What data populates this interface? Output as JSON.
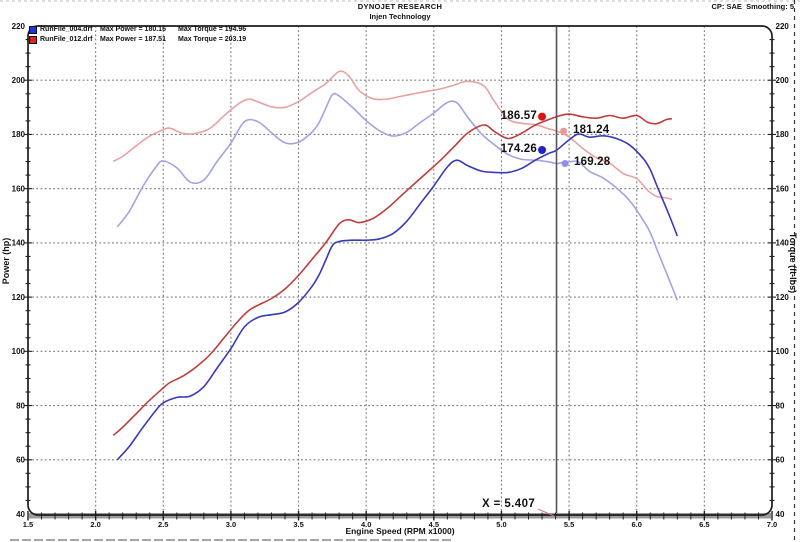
{
  "header": {
    "title": "DYNOJET RESEARCH",
    "subtitle": "Injen Technology",
    "right_info": "CP: SAE  Smoothing: 5"
  },
  "legend": {
    "rows": [
      {
        "swatch_color": "#2233dd",
        "file": "RunFile_004.drf",
        "max_power": "Max Power = 180.16",
        "max_torque": "Max Torque = 194.96"
      },
      {
        "swatch_color": "#dd2222",
        "file": "RunFile_012.drf",
        "max_power": "Max Power = 187.51",
        "max_torque": "Max Torque = 203.19"
      }
    ]
  },
  "chart_data": {
    "type": "line",
    "x_axis": {
      "label": "Engine Speed (RPM x1000)",
      "min": 1.5,
      "max": 7.0,
      "tick_step": 0.5,
      "minor_tick_step": 0.1
    },
    "y_left": {
      "label": "Power (hp)",
      "min": 40,
      "max": 220,
      "tick_step": 20,
      "minor_tick_step": 5
    },
    "y_right": {
      "label": "Torque (ft-lbs)",
      "min": 40,
      "max": 220,
      "tick_step": 20,
      "minor_tick_step": 5
    },
    "grid": "dashed",
    "cursor": {
      "x": 5.407,
      "label": "X = 5.407"
    },
    "markers": [
      {
        "label": "186.57",
        "value": 186.57,
        "x": 5.3,
        "color": "#dd1111",
        "radius": 4,
        "label_side": "left"
      },
      {
        "label": "181.24",
        "value": 181.24,
        "x": 5.46,
        "color": "#e89898",
        "radius": 3.5,
        "label_side": "right"
      },
      {
        "label": "174.26",
        "value": 174.26,
        "x": 5.3,
        "color": "#2222cc",
        "radius": 4,
        "label_side": "left"
      },
      {
        "label": "169.28",
        "value": 169.28,
        "x": 5.47,
        "color": "#9090e8",
        "radius": 3.5,
        "label_side": "right"
      }
    ],
    "series": [
      {
        "name": "RunFile_004.drf Torque (ft-lbs)",
        "color": "#a3a3e3",
        "axis": "right",
        "points": [
          [
            2.16,
            145.9
          ],
          [
            2.25,
            151.7
          ],
          [
            2.35,
            160.9
          ],
          [
            2.45,
            168.3
          ],
          [
            2.5,
            170.2
          ],
          [
            2.6,
            167.7
          ],
          [
            2.7,
            162.4
          ],
          [
            2.8,
            163.2
          ],
          [
            2.9,
            170.2
          ],
          [
            3.0,
            176.8
          ],
          [
            3.1,
            184.7
          ],
          [
            3.2,
            184.7
          ],
          [
            3.3,
            180.6
          ],
          [
            3.4,
            176.9
          ],
          [
            3.5,
            177.1
          ],
          [
            3.6,
            180.9
          ],
          [
            3.65,
            184.2
          ],
          [
            3.7,
            189.5
          ],
          [
            3.75,
            194.7
          ],
          [
            3.8,
            194.2
          ],
          [
            3.9,
            189.9
          ],
          [
            4.0,
            185.1
          ],
          [
            4.1,
            181.3
          ],
          [
            4.2,
            179.4
          ],
          [
            4.3,
            180.8
          ],
          [
            4.4,
            184.4
          ],
          [
            4.5,
            187.9
          ],
          [
            4.6,
            191.8
          ],
          [
            4.67,
            191.7
          ],
          [
            4.75,
            186.4
          ],
          [
            4.85,
            180.3
          ],
          [
            4.95,
            176.1
          ],
          [
            5.05,
            172.6
          ],
          [
            5.15,
            170.8
          ],
          [
            5.25,
            170.5
          ],
          [
            5.35,
            169.9
          ],
          [
            5.41,
            169.3
          ],
          [
            5.5,
            169.9
          ],
          [
            5.57,
            169.9
          ],
          [
            5.65,
            166.4
          ],
          [
            5.75,
            164.0
          ],
          [
            5.85,
            160.3
          ],
          [
            5.95,
            155.4
          ],
          [
            6.05,
            148.2
          ],
          [
            6.1,
            143.8
          ],
          [
            6.15,
            137.5
          ],
          [
            6.2,
            131.3
          ],
          [
            6.25,
            125.2
          ],
          [
            6.3,
            118.8
          ]
        ]
      },
      {
        "name": "RunFile_012.drf Torque (ft-lbs)",
        "color": "#e8a2a2",
        "axis": "right",
        "points": [
          [
            2.13,
            170.1
          ],
          [
            2.2,
            171.9
          ],
          [
            2.3,
            175.8
          ],
          [
            2.4,
            179.4
          ],
          [
            2.5,
            181.7
          ],
          [
            2.55,
            182.3
          ],
          [
            2.65,
            180.3
          ],
          [
            2.75,
            180.5
          ],
          [
            2.85,
            182.4
          ],
          [
            2.95,
            186.9
          ],
          [
            3.05,
            191.1
          ],
          [
            3.13,
            193.0
          ],
          [
            3.2,
            192.0
          ],
          [
            3.3,
            190.2
          ],
          [
            3.4,
            190.0
          ],
          [
            3.5,
            192.1
          ],
          [
            3.6,
            195.5
          ],
          [
            3.7,
            198.7
          ],
          [
            3.8,
            203.2
          ],
          [
            3.87,
            201.6
          ],
          [
            3.95,
            196.1
          ],
          [
            4.05,
            193.2
          ],
          [
            4.15,
            193.0
          ],
          [
            4.25,
            194.0
          ],
          [
            4.35,
            195.0
          ],
          [
            4.45,
            195.9
          ],
          [
            4.55,
            196.8
          ],
          [
            4.65,
            198.2
          ],
          [
            4.75,
            199.6
          ],
          [
            4.87,
            197.9
          ],
          [
            4.95,
            192.0
          ],
          [
            5.05,
            185.6
          ],
          [
            5.15,
            184.1
          ],
          [
            5.25,
            183.6
          ],
          [
            5.35,
            182.1
          ],
          [
            5.41,
            181.2
          ],
          [
            5.5,
            179.1
          ],
          [
            5.6,
            174.9
          ],
          [
            5.7,
            171.4
          ],
          [
            5.8,
            169.4
          ],
          [
            5.9,
            165.6
          ],
          [
            6.0,
            163.7
          ],
          [
            6.08,
            159.4
          ],
          [
            6.15,
            157.1
          ],
          [
            6.22,
            156.6
          ],
          [
            6.26,
            156.0
          ]
        ]
      },
      {
        "name": "RunFile_004.drf Power (hp)",
        "color": "#3939bd",
        "axis": "left",
        "points": [
          [
            2.16,
            60
          ],
          [
            2.25,
            65
          ],
          [
            2.35,
            72
          ],
          [
            2.45,
            78.5
          ],
          [
            2.5,
            81
          ],
          [
            2.6,
            83
          ],
          [
            2.7,
            83.5
          ],
          [
            2.8,
            87
          ],
          [
            2.9,
            94
          ],
          [
            3.0,
            101
          ],
          [
            3.1,
            109
          ],
          [
            3.2,
            112.5
          ],
          [
            3.3,
            113.5
          ],
          [
            3.4,
            114.5
          ],
          [
            3.5,
            118
          ],
          [
            3.6,
            124
          ],
          [
            3.65,
            128
          ],
          [
            3.7,
            133.5
          ],
          [
            3.75,
            139
          ],
          [
            3.8,
            140.5
          ],
          [
            3.9,
            141
          ],
          [
            4.0,
            141
          ],
          [
            4.1,
            141.5
          ],
          [
            4.2,
            143.5
          ],
          [
            4.3,
            148
          ],
          [
            4.4,
            154.5
          ],
          [
            4.5,
            161
          ],
          [
            4.6,
            168
          ],
          [
            4.67,
            170.5
          ],
          [
            4.75,
            168.5
          ],
          [
            4.85,
            166.5
          ],
          [
            4.95,
            166
          ],
          [
            5.05,
            166
          ],
          [
            5.15,
            167.5
          ],
          [
            5.25,
            170.5
          ],
          [
            5.35,
            173
          ],
          [
            5.41,
            174.3
          ],
          [
            5.5,
            178
          ],
          [
            5.57,
            180.2
          ],
          [
            5.65,
            179
          ],
          [
            5.75,
            179.5
          ],
          [
            5.85,
            178.5
          ],
          [
            5.95,
            176
          ],
          [
            6.05,
            171
          ],
          [
            6.1,
            167
          ],
          [
            6.15,
            161
          ],
          [
            6.2,
            155
          ],
          [
            6.25,
            149
          ],
          [
            6.3,
            142.5
          ]
        ]
      },
      {
        "name": "RunFile_012.drf Power (hp)",
        "color": "#c23b3b",
        "axis": "left",
        "points": [
          [
            2.13,
            69
          ],
          [
            2.2,
            72
          ],
          [
            2.3,
            77
          ],
          [
            2.4,
            82
          ],
          [
            2.5,
            86.5
          ],
          [
            2.55,
            88.5
          ],
          [
            2.65,
            91
          ],
          [
            2.75,
            94.5
          ],
          [
            2.85,
            99
          ],
          [
            2.95,
            105
          ],
          [
            3.05,
            111
          ],
          [
            3.13,
            115
          ],
          [
            3.2,
            117
          ],
          [
            3.3,
            119.5
          ],
          [
            3.4,
            123
          ],
          [
            3.5,
            128
          ],
          [
            3.6,
            134
          ],
          [
            3.7,
            140
          ],
          [
            3.8,
            147
          ],
          [
            3.87,
            148.5
          ],
          [
            3.95,
            147.5
          ],
          [
            4.05,
            149
          ],
          [
            4.15,
            152.5
          ],
          [
            4.25,
            157
          ],
          [
            4.35,
            161.5
          ],
          [
            4.45,
            166
          ],
          [
            4.55,
            170.5
          ],
          [
            4.65,
            175.5
          ],
          [
            4.75,
            180.5
          ],
          [
            4.87,
            183.5
          ],
          [
            4.95,
            181
          ],
          [
            5.05,
            178.5
          ],
          [
            5.15,
            180.5
          ],
          [
            5.25,
            183.5
          ],
          [
            5.35,
            185.5
          ],
          [
            5.41,
            186.6
          ],
          [
            5.5,
            187.5
          ],
          [
            5.6,
            186.5
          ],
          [
            5.7,
            186
          ],
          [
            5.8,
            187
          ],
          [
            5.9,
            186
          ],
          [
            6.0,
            187
          ],
          [
            6.08,
            184.5
          ],
          [
            6.15,
            184
          ],
          [
            6.22,
            185.5
          ],
          [
            6.26,
            185.8
          ]
        ]
      }
    ]
  }
}
